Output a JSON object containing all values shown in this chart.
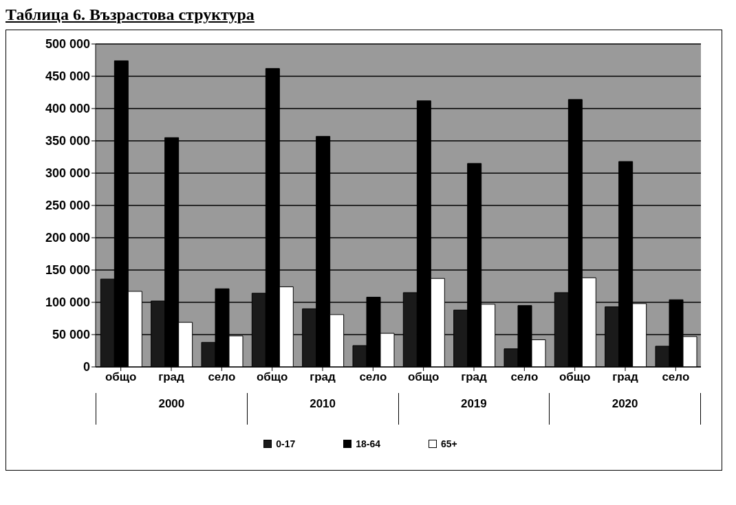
{
  "chart_data": {
    "type": "bar",
    "title": "Таблица 6. Възрастова структура",
    "categories": [
      "общо",
      "град",
      "село",
      "общо",
      "град",
      "село",
      "общо",
      "град",
      "село",
      "общо",
      "град",
      "село"
    ],
    "annotations": [
      "2000",
      "2010",
      "2019",
      "2020"
    ],
    "series": [
      {
        "name": "0-17",
        "color": "#1a1a1a",
        "values": [
          136000,
          102000,
          38000,
          114000,
          90000,
          33000,
          115000,
          88000,
          28000,
          115000,
          93000,
          32000
        ]
      },
      {
        "name": "18-64",
        "color": "#000000",
        "values": [
          474000,
          355000,
          121000,
          462000,
          357000,
          108000,
          412000,
          315000,
          95000,
          414000,
          318000,
          104000
        ]
      },
      {
        "name": "65+",
        "color": "#ffffff",
        "values": [
          117000,
          69000,
          48000,
          124000,
          81000,
          52000,
          137000,
          97000,
          42000,
          138000,
          98000,
          47000
        ]
      }
    ],
    "ylim": [
      0,
      500000
    ],
    "yticks": [
      {
        "value": 0,
        "label": "0"
      },
      {
        "value": 50000,
        "label": "50 000"
      },
      {
        "value": 100000,
        "label": "100 000"
      },
      {
        "value": 150000,
        "label": "150 000"
      },
      {
        "value": 200000,
        "label": "200 000"
      },
      {
        "value": 250000,
        "label": "250 000"
      },
      {
        "value": 300000,
        "label": "300 000"
      },
      {
        "value": 350000,
        "label": "350 000"
      },
      {
        "value": 400000,
        "label": "400 000"
      },
      {
        "value": 450000,
        "label": "450 000"
      },
      {
        "value": 500000,
        "label": "500 000"
      }
    ],
    "grid": "y",
    "legend": "bottom"
  }
}
